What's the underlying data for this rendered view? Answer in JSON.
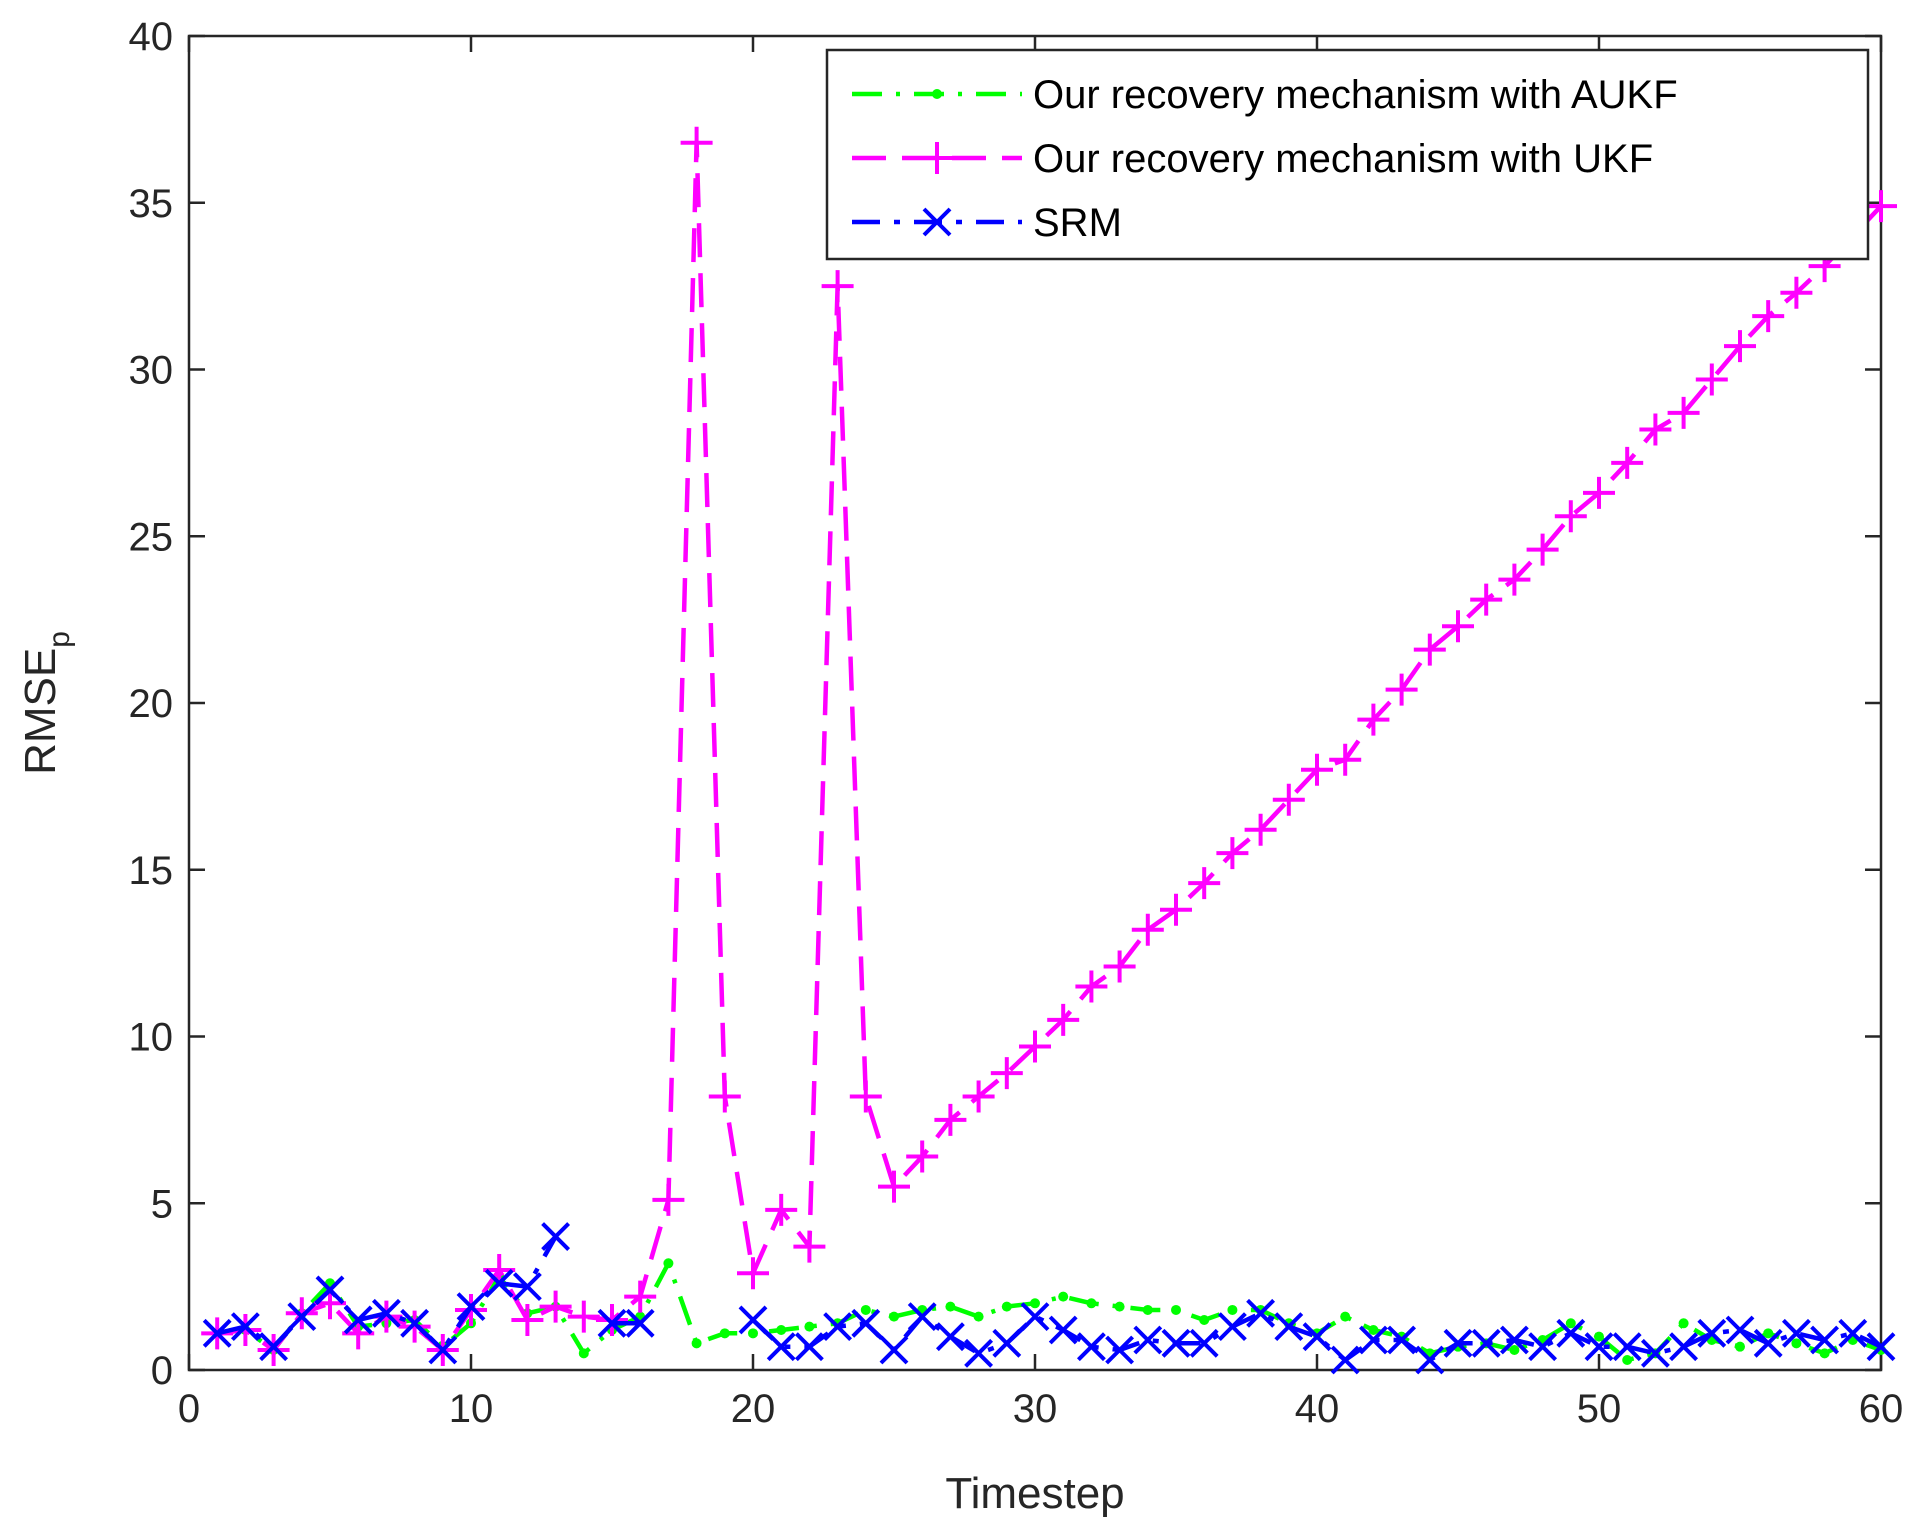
{
  "chart_data": {
    "type": "line",
    "title": "",
    "xlabel": "Timestep",
    "ylabel": "RMSE",
    "ylabel_subscript": "p",
    "xlim": [
      0,
      60
    ],
    "ylim": [
      0,
      40
    ],
    "xticks": [
      0,
      10,
      20,
      30,
      40,
      50,
      60
    ],
    "yticks": [
      0,
      5,
      10,
      15,
      20,
      25,
      30,
      35,
      40
    ],
    "grid": false,
    "legend_position": "top-right",
    "series": [
      {
        "name": "Our recovery mechanism with AUKF",
        "color": "#00ff00",
        "marker": "dot",
        "x": [
          1,
          2,
          3,
          4,
          5,
          6,
          7,
          8,
          9,
          10,
          11,
          12,
          13,
          14,
          15,
          16,
          17,
          18,
          19,
          20,
          21,
          22,
          23,
          24,
          25,
          26,
          27,
          28,
          29,
          30,
          31,
          32,
          33,
          34,
          35,
          36,
          37,
          38,
          39,
          40,
          41,
          42,
          43,
          44,
          45,
          46,
          47,
          48,
          49,
          50,
          51,
          52,
          53,
          54,
          55,
          56,
          57,
          58,
          59,
          60
        ],
        "values": [
          1.1,
          1.2,
          0.6,
          1.7,
          2.6,
          1.3,
          1.4,
          1.5,
          0.7,
          1.4,
          2.8,
          1.7,
          1.9,
          0.5,
          1.2,
          1.6,
          3.2,
          0.8,
          1.1,
          1.1,
          1.2,
          1.3,
          1.4,
          1.8,
          1.6,
          1.8,
          1.9,
          1.6,
          1.9,
          2.0,
          2.2,
          2.0,
          1.9,
          1.8,
          1.8,
          1.5,
          1.8,
          1.8,
          1.4,
          1.1,
          1.6,
          1.2,
          1.0,
          0.5,
          0.7,
          0.8,
          0.6,
          0.9,
          1.4,
          1.0,
          0.3,
          0.5,
          1.4,
          0.9,
          0.7,
          1.1,
          0.8,
          0.5,
          0.9,
          0.6
        ]
      },
      {
        "name": "Our recovery mechanism with UKF",
        "color": "#ff00ff",
        "marker": "plus",
        "x": [
          1,
          2,
          3,
          4,
          5,
          6,
          7,
          8,
          9,
          10,
          11,
          12,
          13,
          14,
          15,
          16,
          17,
          18,
          19,
          20,
          21,
          22,
          23,
          24,
          25,
          26,
          27,
          28,
          29,
          30,
          31,
          32,
          33,
          34,
          35,
          36,
          37,
          38,
          39,
          40,
          41,
          42,
          43,
          44,
          45,
          46,
          47,
          48,
          49,
          50,
          51,
          52,
          53,
          54,
          55,
          56,
          57,
          58,
          59,
          60
        ],
        "values": [
          1.1,
          1.2,
          0.6,
          1.7,
          2.0,
          1.1,
          1.6,
          1.3,
          0.6,
          1.8,
          3.0,
          1.5,
          1.9,
          1.6,
          1.5,
          2.2,
          5.1,
          36.8,
          8.2,
          2.9,
          4.8,
          3.7,
          32.5,
          8.2,
          5.5,
          6.4,
          7.5,
          8.2,
          8.9,
          9.7,
          10.5,
          11.5,
          12.1,
          13.2,
          13.8,
          14.6,
          15.5,
          16.2,
          17.1,
          18.0,
          18.3,
          19.5,
          20.4,
          21.6,
          22.3,
          23.1,
          23.7,
          24.6,
          25.6,
          26.3,
          27.2,
          28.2,
          28.7,
          29.7,
          30.7,
          31.6,
          32.3,
          33.1,
          34.0,
          34.9
        ]
      },
      {
        "name": "SRM",
        "color": "#0000ff",
        "marker": "x",
        "segments": [
          {
            "x": [
              1,
              2,
              3,
              4,
              5,
              6,
              7,
              8,
              9,
              10,
              11,
              12,
              13
            ],
            "values": [
              1.1,
              1.3,
              0.7,
              1.6,
              2.4,
              1.5,
              1.7,
              1.4,
              0.6,
              1.9,
              2.6,
              2.5,
              4.0
            ]
          },
          {
            "x": [
              15,
              16
            ],
            "values": [
              1.4,
              1.4
            ]
          },
          {
            "x": [
              20,
              21,
              22,
              23,
              24,
              25,
              26,
              27,
              28,
              29,
              30,
              31,
              32,
              33,
              34,
              35,
              36,
              37,
              38,
              39,
              40,
              41,
              42,
              43,
              44,
              45,
              46,
              47,
              48,
              49,
              50,
              51,
              52,
              53,
              54,
              55,
              56,
              57,
              58,
              59,
              60
            ],
            "values": [
              1.5,
              0.7,
              0.7,
              1.3,
              1.4,
              0.6,
              1.6,
              1.0,
              0.5,
              0.8,
              1.6,
              1.2,
              0.7,
              0.6,
              0.9,
              0.8,
              0.8,
              1.3,
              1.7,
              1.3,
              1.0,
              0.3,
              0.9,
              0.9,
              0.3,
              0.8,
              0.8,
              0.9,
              0.7,
              1.1,
              0.7,
              0.7,
              0.5,
              0.7,
              1.1,
              1.2,
              0.8,
              1.1,
              0.9,
              1.1,
              0.7
            ]
          }
        ]
      }
    ]
  }
}
